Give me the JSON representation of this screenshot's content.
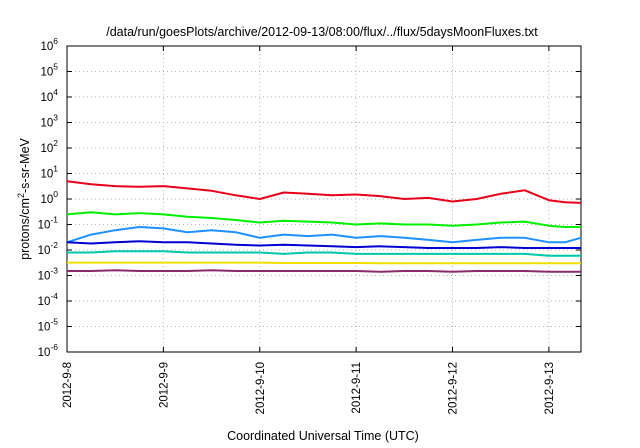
{
  "chart_data": {
    "type": "line",
    "title": "/data/run/goesPlots/archive/2012-09-13/08:00/flux/../flux/5daysMoonFluxes.txt",
    "xlabel": "Coordinated Universal Time (UTC)",
    "ylabel": {
      "prefix": "protons/cm",
      "sup": "2",
      "suffix": "-s-sr-MeV"
    },
    "yscale": "log",
    "ylim": [
      1e-06,
      1000000.0
    ],
    "y_ticks": [
      {
        "value": 1e-06,
        "base": "10",
        "exp": "-6"
      },
      {
        "value": 1e-05,
        "base": "10",
        "exp": "-5"
      },
      {
        "value": 0.0001,
        "base": "10",
        "exp": "-4"
      },
      {
        "value": 0.001,
        "base": "10",
        "exp": "-3"
      },
      {
        "value": 0.01,
        "base": "10",
        "exp": "-2"
      },
      {
        "value": 0.1,
        "base": "10",
        "exp": "-1"
      },
      {
        "value": 1,
        "base": "10",
        "exp": "0"
      },
      {
        "value": 10,
        "base": "10",
        "exp": "1"
      },
      {
        "value": 100,
        "base": "10",
        "exp": "2"
      },
      {
        "value": 1000.0,
        "base": "10",
        "exp": "3"
      },
      {
        "value": 10000.0,
        "base": "10",
        "exp": "4"
      },
      {
        "value": 100000.0,
        "base": "10",
        "exp": "5"
      },
      {
        "value": 1000000.0,
        "base": "10",
        "exp": "6"
      }
    ],
    "x_ticks": [
      "2012-9-8",
      "2012-9-9",
      "2012-9-10",
      "2012-9-11",
      "2012-9-12",
      "2012-9-13"
    ],
    "xlim": [
      "2012-09-08 00:00",
      "2012-09-13 08:00"
    ],
    "grid": true,
    "series": [
      {
        "color": "#e8001a",
        "x": [
          "2012-09-08 00:00",
          "2012-09-08 06:00",
          "2012-09-08 12:00",
          "2012-09-08 18:00",
          "2012-09-09 00:00",
          "2012-09-09 06:00",
          "2012-09-09 12:00",
          "2012-09-09 18:00",
          "2012-09-10 00:00",
          "2012-09-10 06:00",
          "2012-09-10 12:00",
          "2012-09-10 18:00",
          "2012-09-11 00:00",
          "2012-09-11 06:00",
          "2012-09-11 12:00",
          "2012-09-11 18:00",
          "2012-09-12 00:00",
          "2012-09-12 06:00",
          "2012-09-12 12:00",
          "2012-09-12 18:00",
          "2012-09-13 00:00",
          "2012-09-13 04:00",
          "2012-09-13 08:00"
        ],
        "y": [
          5.0,
          3.8,
          3.2,
          3.0,
          3.2,
          2.6,
          2.1,
          1.4,
          1.0,
          1.8,
          1.6,
          1.4,
          1.5,
          1.3,
          1.0,
          1.1,
          0.8,
          1.0,
          1.6,
          2.2,
          0.9,
          0.75,
          0.7
        ]
      },
      {
        "color": "#00f000",
        "x": [
          "2012-09-08 00:00",
          "2012-09-08 06:00",
          "2012-09-08 12:00",
          "2012-09-08 18:00",
          "2012-09-09 00:00",
          "2012-09-09 06:00",
          "2012-09-09 12:00",
          "2012-09-09 18:00",
          "2012-09-10 00:00",
          "2012-09-10 06:00",
          "2012-09-10 12:00",
          "2012-09-10 18:00",
          "2012-09-11 00:00",
          "2012-09-11 06:00",
          "2012-09-11 12:00",
          "2012-09-11 18:00",
          "2012-09-12 00:00",
          "2012-09-12 06:00",
          "2012-09-12 12:00",
          "2012-09-12 18:00",
          "2012-09-13 00:00",
          "2012-09-13 04:00",
          "2012-09-13 08:00"
        ],
        "y": [
          0.25,
          0.3,
          0.25,
          0.28,
          0.25,
          0.2,
          0.18,
          0.15,
          0.12,
          0.14,
          0.13,
          0.12,
          0.1,
          0.11,
          0.1,
          0.1,
          0.09,
          0.1,
          0.12,
          0.13,
          0.09,
          0.08,
          0.08
        ]
      },
      {
        "color": "#1e90ff",
        "x": [
          "2012-09-08 00:00",
          "2012-09-08 06:00",
          "2012-09-08 12:00",
          "2012-09-08 18:00",
          "2012-09-09 00:00",
          "2012-09-09 06:00",
          "2012-09-09 12:00",
          "2012-09-09 18:00",
          "2012-09-10 00:00",
          "2012-09-10 06:00",
          "2012-09-10 12:00",
          "2012-09-10 18:00",
          "2012-09-11 00:00",
          "2012-09-11 06:00",
          "2012-09-11 12:00",
          "2012-09-11 18:00",
          "2012-09-12 00:00",
          "2012-09-12 06:00",
          "2012-09-12 12:00",
          "2012-09-12 18:00",
          "2012-09-13 00:00",
          "2012-09-13 04:00",
          "2012-09-13 08:00"
        ],
        "y": [
          0.02,
          0.04,
          0.06,
          0.08,
          0.07,
          0.05,
          0.06,
          0.05,
          0.03,
          0.04,
          0.035,
          0.04,
          0.03,
          0.035,
          0.03,
          0.025,
          0.02,
          0.025,
          0.03,
          0.03,
          0.02,
          0.02,
          0.03
        ]
      },
      {
        "color": "#0000d0",
        "x": [
          "2012-09-08 00:00",
          "2012-09-08 06:00",
          "2012-09-08 12:00",
          "2012-09-08 18:00",
          "2012-09-09 00:00",
          "2012-09-09 06:00",
          "2012-09-09 12:00",
          "2012-09-09 18:00",
          "2012-09-10 00:00",
          "2012-09-10 06:00",
          "2012-09-10 12:00",
          "2012-09-10 18:00",
          "2012-09-11 00:00",
          "2012-09-11 06:00",
          "2012-09-11 12:00",
          "2012-09-11 18:00",
          "2012-09-12 00:00",
          "2012-09-12 06:00",
          "2012-09-12 12:00",
          "2012-09-12 18:00",
          "2012-09-13 00:00",
          "2012-09-13 04:00",
          "2012-09-13 08:00"
        ],
        "y": [
          0.02,
          0.018,
          0.02,
          0.022,
          0.02,
          0.02,
          0.018,
          0.016,
          0.015,
          0.016,
          0.015,
          0.014,
          0.013,
          0.014,
          0.013,
          0.012,
          0.012,
          0.012,
          0.013,
          0.012,
          0.012,
          0.012,
          0.012
        ]
      },
      {
        "color": "#00c8a8",
        "x": [
          "2012-09-08 00:00",
          "2012-09-08 06:00",
          "2012-09-08 12:00",
          "2012-09-08 18:00",
          "2012-09-09 00:00",
          "2012-09-09 06:00",
          "2012-09-09 12:00",
          "2012-09-09 18:00",
          "2012-09-10 00:00",
          "2012-09-10 06:00",
          "2012-09-10 12:00",
          "2012-09-10 18:00",
          "2012-09-11 00:00",
          "2012-09-11 06:00",
          "2012-09-11 12:00",
          "2012-09-11 18:00",
          "2012-09-12 00:00",
          "2012-09-12 06:00",
          "2012-09-12 12:00",
          "2012-09-12 18:00",
          "2012-09-13 00:00",
          "2012-09-13 04:00",
          "2012-09-13 08:00"
        ],
        "y": [
          0.008,
          0.008,
          0.009,
          0.009,
          0.009,
          0.008,
          0.008,
          0.008,
          0.008,
          0.007,
          0.008,
          0.008,
          0.007,
          0.007,
          0.007,
          0.007,
          0.007,
          0.007,
          0.007,
          0.007,
          0.006,
          0.006,
          0.006
        ]
      },
      {
        "color": "#f0e000",
        "x": [
          "2012-09-08 00:00",
          "2012-09-08 06:00",
          "2012-09-08 12:00",
          "2012-09-08 18:00",
          "2012-09-09 00:00",
          "2012-09-09 06:00",
          "2012-09-09 12:00",
          "2012-09-09 18:00",
          "2012-09-10 00:00",
          "2012-09-10 06:00",
          "2012-09-10 12:00",
          "2012-09-10 18:00",
          "2012-09-11 00:00",
          "2012-09-11 06:00",
          "2012-09-11 12:00",
          "2012-09-11 18:00",
          "2012-09-12 00:00",
          "2012-09-12 06:00",
          "2012-09-12 12:00",
          "2012-09-12 18:00",
          "2012-09-13 00:00",
          "2012-09-13 04:00",
          "2012-09-13 08:00"
        ],
        "y": [
          0.0032,
          0.0032,
          0.0032,
          0.0032,
          0.0032,
          0.0032,
          0.0032,
          0.0032,
          0.0032,
          0.0031,
          0.0031,
          0.0031,
          0.0031,
          0.003,
          0.003,
          0.003,
          0.003,
          0.003,
          0.003,
          0.003,
          0.003,
          0.003,
          0.003
        ]
      },
      {
        "color": "#8b2a6a",
        "x": [
          "2012-09-08 00:00",
          "2012-09-08 06:00",
          "2012-09-08 12:00",
          "2012-09-08 18:00",
          "2012-09-09 00:00",
          "2012-09-09 06:00",
          "2012-09-09 12:00",
          "2012-09-09 18:00",
          "2012-09-10 00:00",
          "2012-09-10 06:00",
          "2012-09-10 12:00",
          "2012-09-10 18:00",
          "2012-09-11 00:00",
          "2012-09-11 06:00",
          "2012-09-11 12:00",
          "2012-09-11 18:00",
          "2012-09-12 00:00",
          "2012-09-12 06:00",
          "2012-09-12 12:00",
          "2012-09-12 18:00",
          "2012-09-13 00:00",
          "2012-09-13 04:00",
          "2012-09-13 08:00"
        ],
        "y": [
          0.0015,
          0.0015,
          0.0016,
          0.0015,
          0.0015,
          0.0015,
          0.0016,
          0.0015,
          0.0015,
          0.0015,
          0.0015,
          0.0015,
          0.0015,
          0.0014,
          0.0015,
          0.0015,
          0.0014,
          0.0015,
          0.0015,
          0.0015,
          0.0014,
          0.0014,
          0.0014
        ]
      }
    ]
  }
}
